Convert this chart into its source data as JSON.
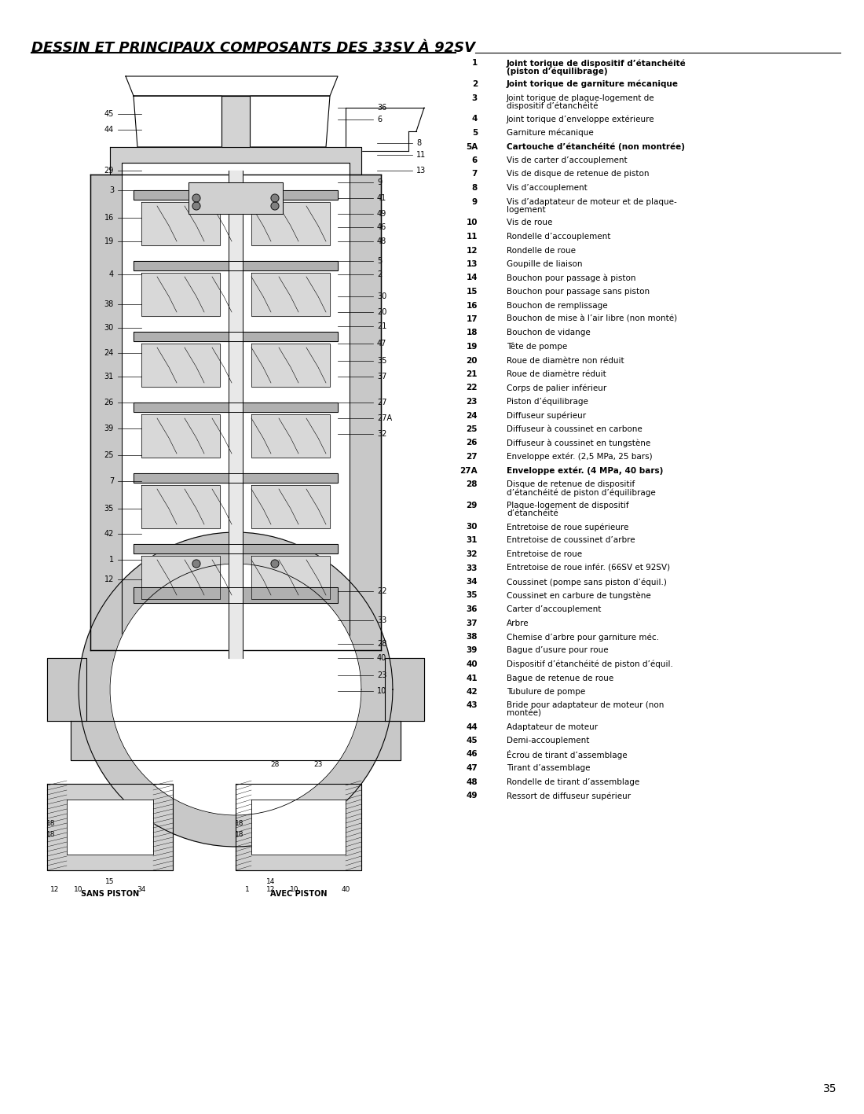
{
  "title": "DESSIN ET PRINCIPAUX COMPOSANTS DES 33SV À 92SV",
  "page_number": "35",
  "background_color": "#ffffff",
  "title_fontsize": 13,
  "parts_list": [
    {
      "num": "1",
      "bold": true,
      "text": "Joint torique de dispositif d’étanchéité\n(piston d’équilibrage)"
    },
    {
      "num": "2",
      "bold": true,
      "text": "Joint torique de garniture mécanique"
    },
    {
      "num": "3",
      "bold": false,
      "text": "Joint torique de plaque-logement de\ndispositif d’étanchéité"
    },
    {
      "num": "4",
      "bold": false,
      "text": "Joint torique d’enveloppe extérieure"
    },
    {
      "num": "5",
      "bold": false,
      "text": "Garniture mécanique"
    },
    {
      "num": "5A",
      "bold": true,
      "text": "Cartouche d’étanchéité (non montrée)"
    },
    {
      "num": "6",
      "bold": false,
      "text": "Vis de carter d’accouplement"
    },
    {
      "num": "7",
      "bold": false,
      "text": "Vis de disque de retenue de piston"
    },
    {
      "num": "8",
      "bold": false,
      "text": "Vis d’accouplement"
    },
    {
      "num": "9",
      "bold": false,
      "text": "Vis d’adaptateur de moteur et de plaque-\nlogement"
    },
    {
      "num": "10",
      "bold": false,
      "text": "Vis de roue"
    },
    {
      "num": "11",
      "bold": false,
      "text": "Rondelle d’accouplement"
    },
    {
      "num": "12",
      "bold": false,
      "text": "Rondelle de roue"
    },
    {
      "num": "13",
      "bold": false,
      "text": "Goupille de liaison"
    },
    {
      "num": "14",
      "bold": false,
      "text": "Bouchon pour passage à piston"
    },
    {
      "num": "15",
      "bold": false,
      "text": "Bouchon pour passage sans piston"
    },
    {
      "num": "16",
      "bold": false,
      "text": "Bouchon de remplissage"
    },
    {
      "num": "17",
      "bold": false,
      "text": "Bouchon de mise à l’air libre (non monté)"
    },
    {
      "num": "18",
      "bold": false,
      "text": "Bouchon de vidange"
    },
    {
      "num": "19",
      "bold": false,
      "text": "Tête de pompe"
    },
    {
      "num": "20",
      "bold": false,
      "text": "Roue de diamètre non réduit"
    },
    {
      "num": "21",
      "bold": false,
      "text": "Roue de diamètre réduit"
    },
    {
      "num": "22",
      "bold": false,
      "text": "Corps de palier inférieur"
    },
    {
      "num": "23",
      "bold": false,
      "text": "Piston d’équilibrage"
    },
    {
      "num": "24",
      "bold": false,
      "text": "Diffuseur supérieur"
    },
    {
      "num": "25",
      "bold": false,
      "text": "Diffuseur à coussinet en carbone"
    },
    {
      "num": "26",
      "bold": false,
      "text": "Diffuseur à coussinet en tungstène"
    },
    {
      "num": "27",
      "bold": false,
      "text": "Enveloppe extér. (2,5 MPa, 25 bars)"
    },
    {
      "num": "27A",
      "bold": true,
      "text": "Enveloppe extér. (4 MPa, 40 bars)"
    },
    {
      "num": "28",
      "bold": false,
      "text": "Disque de retenue de dispositif\nd’étanchéité de piston d’équilibrage"
    },
    {
      "num": "29",
      "bold": false,
      "text": "Plaque-logement de dispositif\nd’étanchéité"
    },
    {
      "num": "30",
      "bold": false,
      "text": "Entretoise de roue supérieure"
    },
    {
      "num": "31",
      "bold": false,
      "text": "Entretoise de coussinet d’arbre"
    },
    {
      "num": "32",
      "bold": false,
      "text": "Entretoise de roue"
    },
    {
      "num": "33",
      "bold": false,
      "text": "Entretoise de roue infér. (66SV et 92SV)"
    },
    {
      "num": "34",
      "bold": false,
      "text": "Coussinet (pompe sans piston d’équil.)"
    },
    {
      "num": "35",
      "bold": false,
      "text": "Coussinet en carbure de tungstène"
    },
    {
      "num": "36",
      "bold": false,
      "text": "Carter d’accouplement"
    },
    {
      "num": "37",
      "bold": false,
      "text": "Arbre"
    },
    {
      "num": "38",
      "bold": false,
      "text": "Chemise d’arbre pour garniture méc."
    },
    {
      "num": "39",
      "bold": false,
      "text": "Bague d’usure pour roue"
    },
    {
      "num": "40",
      "bold": false,
      "text": "Dispositif d’étanchéité de piston d’équil."
    },
    {
      "num": "41",
      "bold": false,
      "text": "Bague de retenue de roue"
    },
    {
      "num": "42",
      "bold": false,
      "text": "Tubulure de pompe"
    },
    {
      "num": "43",
      "bold": false,
      "text": "Bride pour adaptateur de moteur (non\nmontée)"
    },
    {
      "num": "44",
      "bold": false,
      "text": "Adaptateur de moteur"
    },
    {
      "num": "45",
      "bold": false,
      "text": "Demi-accouplement"
    },
    {
      "num": "46",
      "bold": false,
      "text": "Écrou de tirant d’assemblage"
    },
    {
      "num": "47",
      "bold": false,
      "text": "Tirant d’assemblage"
    },
    {
      "num": "48",
      "bold": false,
      "text": "Rondelle de tirant d’assemblage"
    },
    {
      "num": "49",
      "bold": false,
      "text": "Ressort de diffuseur supérieur"
    }
  ],
  "diagram_label_left": [
    "45",
    "44",
    "29",
    "3",
    "16",
    "19",
    "4",
    "38",
    "30",
    "24",
    "31",
    "26",
    "39",
    "25",
    "7",
    "35",
    "42",
    "1",
    "12"
  ],
  "diagram_label_right": [
    "36",
    "6",
    "8",
    "11",
    "13",
    "9",
    "41",
    "49",
    "46",
    "48",
    "5",
    "2",
    "30",
    "20",
    "21",
    "47",
    "35",
    "37",
    "27",
    "27A",
    "32",
    "22",
    "33",
    "28",
    "40",
    "23",
    "10"
  ],
  "bottom_left_labels": [
    "SANS PISTON",
    "18",
    "18",
    "15",
    "12",
    "10",
    "34"
  ],
  "bottom_right_labels": [
    "AVEC PISTON",
    "18",
    "18",
    "14",
    "1",
    "12",
    "10",
    "40"
  ],
  "text_color": "#000000",
  "line_color": "#000000"
}
